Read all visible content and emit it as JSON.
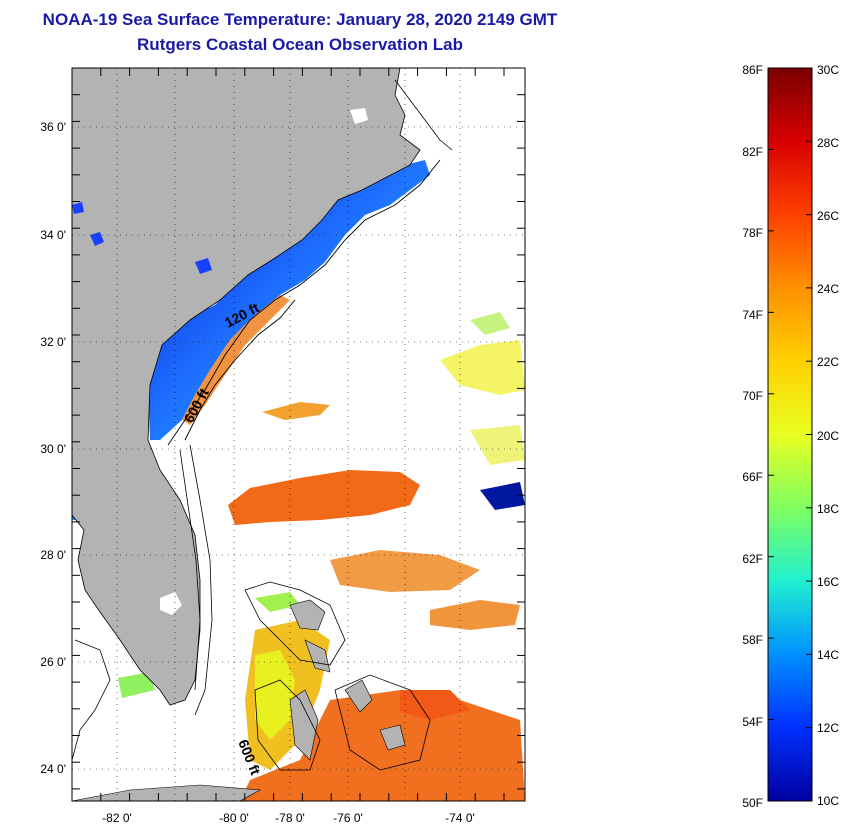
{
  "header": {
    "title": "NOAA-19 Sea Surface Temperature:  January 28, 2020 2149 GMT",
    "subtitle": "Rutgers Coastal Ocean Observation Lab"
  },
  "map": {
    "lat_labels": [
      "36 0'",
      "34 0'",
      "32 0'",
      "30 0'",
      "28 0'",
      "26 0'",
      "24 0'"
    ],
    "lon_labels": [
      "-82 0'",
      "-80 0'",
      "-78 0'",
      "-76 0'",
      "-74 0'"
    ],
    "lat_range": [
      23.0,
      37.2
    ],
    "lon_range": [
      -83.0,
      -73.0
    ],
    "contours": {
      "label_120": "120 ft",
      "label_600_north": "600 ft",
      "label_600_south": "600 ft"
    },
    "colors": {
      "land": "#b3b3b3",
      "no_data": "#ffffff",
      "shelf_cold": "#1e50ff",
      "gulf_stream": "#f0781e"
    }
  },
  "colorbar": {
    "fahrenheit_labels": [
      "86F",
      "82F",
      "78F",
      "74F",
      "70F",
      "66F",
      "62F",
      "58F",
      "54F",
      "50F"
    ],
    "celsius_labels": [
      "30C",
      "28C",
      "26C",
      "24C",
      "22C",
      "20C",
      "18C",
      "16C",
      "14C",
      "12C",
      "10C"
    ],
    "min_c": 10,
    "max_c": 30,
    "gradient": [
      "#7a0000",
      "#d80000",
      "#ff4000",
      "#ff9000",
      "#ffd000",
      "#e8ff20",
      "#80ff60",
      "#20f0d0",
      "#0090ff",
      "#0030ff",
      "#0000a0"
    ]
  }
}
